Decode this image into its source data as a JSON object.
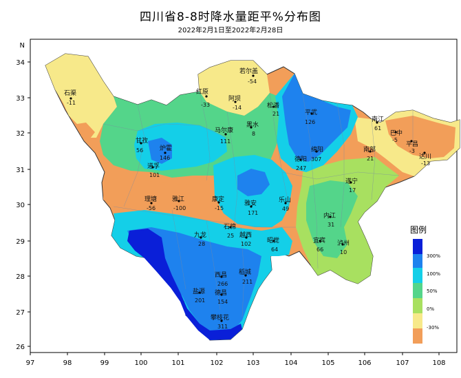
{
  "title": "四川省8-8时降水量距平%分布图",
  "subtitle": "2022年2月1日至2022年2月28日",
  "axes": {
    "x_ticks": [
      "97",
      "98",
      "99",
      "100",
      "101",
      "102",
      "103",
      "104",
      "105",
      "106",
      "107",
      "108"
    ],
    "y_ticks": [
      "34",
      "33",
      "32",
      "31",
      "30",
      "29",
      "28",
      "27",
      "26"
    ],
    "y_unit": "N"
  },
  "legend": {
    "title": "图例",
    "labels": [
      "300%",
      "100%",
      "50%",
      "0%",
      "-30%"
    ],
    "colors": [
      "#0a1fd8",
      "#1e82ee",
      "#14cfe8",
      "#54d58a",
      "#a8e060",
      "#f7e98a",
      "#f29e59"
    ]
  },
  "colors": {
    "strong_negative": "#f29e59",
    "negative": "#f7e98a",
    "near_normal": "#a8e060",
    "positive": "#54d58a",
    "moderate": "#14cfe8",
    "high": "#1e82ee",
    "very_high": "#0a1fd8"
  },
  "stations": [
    {
      "name": "石渠",
      "value": "-11"
    },
    {
      "name": "若尔盖",
      "value": "-54"
    },
    {
      "name": "红原",
      "value": "-33"
    },
    {
      "name": "阿坝",
      "value": "-14"
    },
    {
      "name": "松潘",
      "value": "21"
    },
    {
      "name": "平武",
      "value": "126"
    },
    {
      "name": "马尔康",
      "value": "111"
    },
    {
      "name": "黑水",
      "value": "8"
    },
    {
      "name": "甘孜",
      "value": "56"
    },
    {
      "name": "炉霍",
      "value": "146"
    },
    {
      "name": "道孚",
      "value": "101"
    },
    {
      "name": "绵阳",
      "value": "307"
    },
    {
      "name": "德阳",
      "value": "247"
    },
    {
      "name": "南江",
      "value": "61"
    },
    {
      "name": "巴中",
      "value": "-5"
    },
    {
      "name": "平昌",
      "value": "-3"
    },
    {
      "name": "达川",
      "value": "-13"
    },
    {
      "name": "南部",
      "value": "21"
    },
    {
      "name": "遂宁",
      "value": "17"
    },
    {
      "name": "理塘",
      "value": "-56"
    },
    {
      "name": "雅江",
      "value": "-100"
    },
    {
      "name": "康定",
      "value": "-15"
    },
    {
      "name": "九龙",
      "value": "28"
    },
    {
      "name": "石棉",
      "value": "25"
    },
    {
      "name": "乐山",
      "value": "49"
    },
    {
      "name": "内江",
      "value": "31"
    },
    {
      "name": "雅安",
      "value": "171"
    },
    {
      "name": "稻城",
      "value": "211"
    },
    {
      "name": "越西",
      "value": "102"
    },
    {
      "name": "宜宾",
      "value": "66"
    },
    {
      "name": "泸州",
      "value": "10"
    },
    {
      "name": "昭觉",
      "value": "64"
    },
    {
      "name": "西昌",
      "value": "266"
    },
    {
      "name": "盐源",
      "value": "201"
    },
    {
      "name": "德昌",
      "value": "154"
    },
    {
      "name": "攀枝花",
      "value": "311"
    }
  ]
}
